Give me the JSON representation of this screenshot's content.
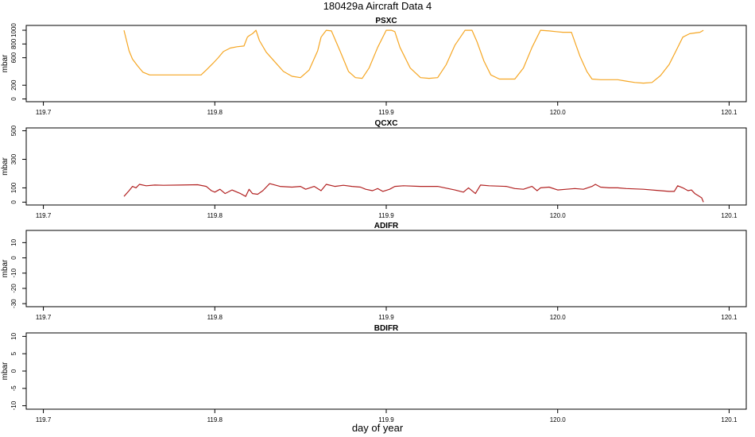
{
  "title": "180429a   Aircraft Data 4",
  "xlabel": "day of year",
  "chart_data": [
    {
      "type": "line",
      "title": "PSXC",
      "ylabel": "mbar",
      "color": "#f5a623",
      "xlim": [
        119.69,
        120.11
      ],
      "ylim": [
        -40,
        1070
      ],
      "xticks": [
        119.7,
        119.8,
        119.9,
        120.0,
        120.1
      ],
      "xtick_labels": [
        "119.7",
        "119.8",
        "119.9",
        "120.0",
        "120.1"
      ],
      "yticks": [
        0,
        200,
        600,
        800,
        1000
      ],
      "ytick_labels": [
        "0",
        "200",
        "600",
        "800",
        "1000"
      ],
      "series": [
        {
          "x": [
            119.747,
            119.75,
            119.752,
            119.755,
            119.758,
            119.762,
            119.766,
            119.775,
            119.785,
            119.792,
            119.795,
            119.799,
            119.802,
            119.805,
            119.809,
            119.813,
            119.817,
            119.819,
            119.82,
            119.822,
            119.824,
            119.826,
            119.83,
            119.835,
            119.84,
            119.845,
            119.85,
            119.855,
            119.86,
            119.862,
            119.865,
            119.868,
            119.873,
            119.878,
            119.882,
            119.886,
            119.89,
            119.895,
            119.9,
            119.903,
            119.905,
            119.908,
            119.914,
            119.92,
            119.925,
            119.93,
            119.935,
            119.94,
            119.946,
            119.95,
            119.953,
            119.957,
            119.961,
            119.966,
            119.97,
            119.975,
            119.98,
            119.985,
            119.99,
            119.995,
            119.999,
            120.003,
            120.008,
            120.013,
            120.017,
            120.02,
            120.025,
            120.03,
            120.035,
            120.04,
            120.045,
            120.05,
            120.055,
            120.06,
            120.065,
            120.069,
            120.073,
            120.077,
            120.08,
            120.083,
            120.085
          ],
          "y": [
            1000,
            700,
            580,
            480,
            390,
            350,
            350,
            350,
            350,
            350,
            420,
            520,
            600,
            690,
            740,
            760,
            770,
            900,
            920,
            950,
            1000,
            850,
            680,
            540,
            400,
            330,
            310,
            420,
            700,
            900,
            1000,
            990,
            700,
            400,
            310,
            300,
            450,
            750,
            1000,
            1000,
            980,
            750,
            450,
            310,
            300,
            310,
            500,
            780,
            1000,
            1000,
            830,
            550,
            350,
            290,
            290,
            290,
            450,
            750,
            1000,
            990,
            980,
            970,
            970,
            620,
            400,
            290,
            280,
            280,
            280,
            260,
            240,
            230,
            240,
            340,
            500,
            700,
            900,
            950,
            960,
            970,
            1000
          ]
        }
      ]
    },
    {
      "type": "line",
      "title": "QCXC",
      "ylabel": "mbar",
      "color": "#b22222",
      "xlim": [
        119.69,
        120.11
      ],
      "ylim": [
        -20,
        520
      ],
      "xticks": [
        119.7,
        119.8,
        119.9,
        120.0,
        120.1
      ],
      "xtick_labels": [
        "119.7",
        "119.8",
        "119.9",
        "120.0",
        "120.1"
      ],
      "yticks": [
        0,
        100,
        300,
        500
      ],
      "ytick_labels": [
        "0",
        "100",
        "300",
        "500"
      ],
      "series": [
        {
          "x": [
            119.747,
            119.75,
            119.752,
            119.754,
            119.756,
            119.76,
            119.765,
            119.77,
            119.78,
            119.79,
            119.795,
            119.798,
            119.8,
            119.803,
            119.806,
            119.81,
            119.813,
            119.815,
            119.818,
            119.82,
            119.822,
            119.825,
            119.828,
            119.832,
            119.838,
            119.845,
            119.85,
            119.853,
            119.858,
            119.862,
            119.865,
            119.87,
            119.875,
            119.88,
            119.885,
            119.888,
            119.892,
            119.895,
            119.898,
            119.902,
            119.905,
            119.91,
            119.92,
            119.93,
            119.94,
            119.945,
            119.948,
            119.952,
            119.955,
            119.96,
            119.97,
            119.975,
            119.98,
            119.985,
            119.988,
            119.99,
            119.995,
            120.0,
            120.005,
            120.01,
            120.015,
            120.02,
            120.022,
            120.025,
            120.03,
            120.035,
            120.04,
            120.05,
            120.06,
            120.065,
            120.068,
            120.07,
            120.073,
            120.076,
            120.078,
            120.08,
            120.082,
            120.084,
            120.085
          ],
          "y": [
            40,
            80,
            110,
            100,
            125,
            115,
            120,
            118,
            120,
            122,
            110,
            80,
            70,
            90,
            60,
            85,
            70,
            60,
            40,
            90,
            60,
            55,
            80,
            130,
            110,
            105,
            110,
            90,
            110,
            80,
            125,
            110,
            118,
            110,
            105,
            90,
            80,
            95,
            75,
            90,
            110,
            115,
            110,
            110,
            85,
            70,
            100,
            60,
            120,
            115,
            110,
            95,
            90,
            110,
            80,
            100,
            105,
            85,
            90,
            95,
            90,
            110,
            125,
            105,
            100,
            100,
            95,
            90,
            80,
            75,
            75,
            115,
            100,
            80,
            85,
            60,
            45,
            30,
            0
          ]
        }
      ]
    },
    {
      "type": "line",
      "title": "ADIFR",
      "ylabel": "mbar",
      "xlim": [
        119.69,
        120.11
      ],
      "ylim": [
        -32,
        18
      ],
      "xticks": [
        119.7,
        119.8,
        119.9,
        120.0,
        120.1
      ],
      "xtick_labels": [
        "119.7",
        "119.8",
        "119.9",
        "120.0",
        "120.1"
      ],
      "yticks": [
        -30,
        -20,
        -10,
        0,
        10
      ],
      "ytick_labels": [
        "-30",
        "-20",
        "-10",
        "0",
        "10"
      ],
      "series": []
    },
    {
      "type": "line",
      "title": "BDIFR",
      "ylabel": "mbar",
      "xlim": [
        119.69,
        120.11
      ],
      "ylim": [
        -11,
        11
      ],
      "xticks": [
        119.7,
        119.8,
        119.9,
        120.0,
        120.1
      ],
      "xtick_labels": [
        "119.7",
        "119.8",
        "119.9",
        "120.0",
        "120.1"
      ],
      "yticks": [
        -10,
        -5,
        0,
        5,
        10
      ],
      "ytick_labels": [
        "-10",
        "-5",
        "0",
        "5",
        "10"
      ],
      "series": []
    }
  ]
}
